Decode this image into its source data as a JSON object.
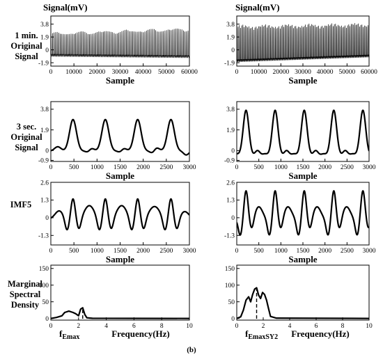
{
  "figure": {
    "caption": "(b)",
    "row_labels": [
      "1 min.\nOriginal\nSignal",
      "3 sec.\nOriginal\nSignal",
      "IMF5",
      "Marginal\nSpectral\nDensity"
    ],
    "column_title": "Signal(mV)"
  },
  "chart_data": [
    {
      "id": "p00",
      "type": "line",
      "title": "Signal(mV)",
      "xlabel": "Sample",
      "ylabel": "",
      "xlim": [
        0,
        60000
      ],
      "ylim": [
        -2.4,
        5.0
      ],
      "xticks": [
        0,
        10000,
        20000,
        30000,
        40000,
        50000,
        60000
      ],
      "yticks": [
        -1.9,
        0.0,
        1.9,
        3.8
      ],
      "series": [
        {
          "kind": "dense",
          "n_cycles": 90,
          "base_start": -0.8,
          "base_end": -1.0,
          "peak_start": 2.4,
          "peak_end": 3.1
        }
      ]
    },
    {
      "id": "p01",
      "type": "line",
      "title": "Signal(mV)",
      "xlabel": "Sample",
      "ylabel": "",
      "xlim": [
        0,
        60000
      ],
      "ylim": [
        -2.4,
        5.0
      ],
      "xticks": [
        0,
        10000,
        20000,
        30000,
        40000,
        50000,
        60000
      ],
      "yticks": [
        -1.9,
        0.0,
        1.9,
        3.8
      ],
      "series": [
        {
          "kind": "dense",
          "n_cycles": 110,
          "base_start": -1.6,
          "base_end": -0.9,
          "peak_start": 3.5,
          "peak_end": 3.8
        }
      ]
    },
    {
      "id": "p10",
      "type": "line",
      "title": "",
      "xlabel": "Sample",
      "ylabel": "",
      "xlim": [
        0,
        3000
      ],
      "ylim": [
        -1.0,
        4.5
      ],
      "xticks": [
        0,
        500,
        1000,
        1500,
        2000,
        2500,
        3000
      ],
      "yticks": [
        -0.9,
        0.0,
        1.9,
        3.8
      ],
      "series": [
        {
          "kind": "pulse",
          "peaks": [
            480,
            1180,
            1880,
            2600
          ],
          "height": 2.9,
          "base": -0.05,
          "width": 75,
          "bumps": [
            [
              -330,
              0.4,
              70
            ],
            [
              330,
              -0.35,
              55
            ]
          ]
        }
      ]
    },
    {
      "id": "p11",
      "type": "line",
      "title": "",
      "xlabel": "Sample",
      "ylabel": "",
      "xlim": [
        0,
        3000
      ],
      "ylim": [
        -1.0,
        4.5
      ],
      "xticks": [
        0,
        500,
        1000,
        1500,
        2000,
        2500,
        3000
      ],
      "yticks": [
        -0.9,
        0.0,
        1.9,
        3.8
      ],
      "series": [
        {
          "kind": "pulse",
          "peaks": [
            210,
            870,
            1530,
            2200,
            2860
          ],
          "height": 4.2,
          "base": -0.5,
          "width": 65,
          "bumps": [
            [
              260,
              0.5,
              55
            ],
            [
              -230,
              0.2,
              60
            ]
          ]
        }
      ]
    },
    {
      "id": "p20",
      "type": "line",
      "title": "",
      "xlabel": "Sample",
      "ylabel": "",
      "xlim": [
        0,
        3000
      ],
      "ylim": [
        -2.0,
        2.6
      ],
      "xticks": [
        0,
        500,
        1000,
        1500,
        2000,
        2500,
        3000
      ],
      "yticks": [
        -1.3,
        0.0,
        1.3,
        2.6
      ],
      "series": [
        {
          "kind": "pulse",
          "peaks": [
            480,
            1180,
            1880,
            2600
          ],
          "height": 1.5,
          "base": -0.1,
          "width": 45,
          "bumps": [
            [
              -130,
              -0.9,
              45
            ],
            [
              130,
              -0.8,
              45
            ],
            [
              -300,
              0.6,
              90
            ],
            [
              300,
              0.55,
              90
            ]
          ]
        }
      ]
    },
    {
      "id": "p21",
      "type": "line",
      "title": "",
      "xlabel": "Sample",
      "ylabel": "",
      "xlim": [
        0,
        3000
      ],
      "ylim": [
        -2.0,
        2.6
      ],
      "xticks": [
        0,
        500,
        1000,
        1500,
        2000,
        2500,
        3000
      ],
      "yticks": [
        -1.3,
        0.0,
        1.3,
        2.6
      ],
      "series": [
        {
          "kind": "pulse",
          "peaks": [
            210,
            870,
            1530,
            2200,
            2860
          ],
          "height": 2.1,
          "base": -0.1,
          "width": 45,
          "bumps": [
            [
              -130,
              -1.2,
              45
            ],
            [
              130,
              -0.8,
              45
            ],
            [
              290,
              0.9,
              85
            ]
          ]
        }
      ]
    },
    {
      "id": "p30",
      "type": "line",
      "title": "",
      "xlabel": "Frequency(Hz)",
      "ylabel": "",
      "xlim": [
        0,
        10
      ],
      "ylim": [
        -5,
        160
      ],
      "xticks": [
        0,
        2,
        4,
        6,
        8,
        10
      ],
      "yticks": [
        0,
        50,
        100,
        150
      ],
      "marker_label": "fEmax",
      "marker_x": 2.3,
      "series": [
        {
          "kind": "spectrum",
          "points": [
            [
              0,
              0
            ],
            [
              0.4,
              3
            ],
            [
              0.8,
              8
            ],
            [
              1.0,
              18
            ],
            [
              1.3,
              22
            ],
            [
              1.6,
              18
            ],
            [
              1.8,
              14
            ],
            [
              2.0,
              8
            ],
            [
              2.15,
              28
            ],
            [
              2.3,
              32
            ],
            [
              2.45,
              12
            ],
            [
              2.6,
              2
            ],
            [
              3.0,
              0.5
            ],
            [
              4,
              0.3
            ],
            [
              6,
              0.2
            ],
            [
              10,
              0
            ]
          ]
        }
      ]
    },
    {
      "id": "p31",
      "type": "line",
      "title": "",
      "xlabel": "Frequency(Hz)",
      "ylabel": "",
      "xlim": [
        0,
        10
      ],
      "ylim": [
        -5,
        160
      ],
      "xticks": [
        0,
        2,
        4,
        6,
        8,
        10
      ],
      "yticks": [
        0,
        50,
        100,
        150
      ],
      "marker_label": "fEmaxSY2",
      "marker_x": 1.5,
      "series": [
        {
          "kind": "spectrum",
          "points": [
            [
              0,
              0
            ],
            [
              0.3,
              5
            ],
            [
              0.5,
              25
            ],
            [
              0.7,
              55
            ],
            [
              0.9,
              65
            ],
            [
              1.05,
              50
            ],
            [
              1.2,
              72
            ],
            [
              1.35,
              88
            ],
            [
              1.5,
              92
            ],
            [
              1.65,
              70
            ],
            [
              1.8,
              60
            ],
            [
              1.95,
              78
            ],
            [
              2.1,
              72
            ],
            [
              2.25,
              55
            ],
            [
              2.4,
              30
            ],
            [
              2.55,
              6
            ],
            [
              3,
              1
            ],
            [
              10,
              0
            ]
          ]
        }
      ]
    }
  ]
}
